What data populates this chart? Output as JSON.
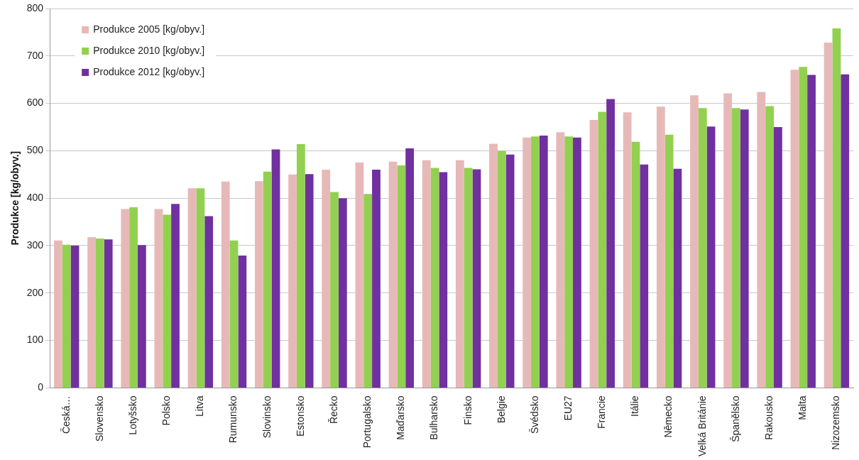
{
  "chart_data": {
    "type": "bar",
    "ylabel": "Produkce [kg/obyv.]",
    "categories": [
      "Česká…",
      "Slovensko",
      "Lotyšsko",
      "Polsko",
      "Litva",
      "Rumunsko",
      "Slovinsko",
      "Estonsko",
      "Řecko",
      "Portugalsko",
      "Maďarsko",
      "Bulharsko",
      "Finsko",
      "Belgie",
      "Švédsko",
      "EU27",
      "Francie",
      "Itálie",
      "Německo",
      "Velká Británie",
      "Španělsko",
      "Rakousko",
      "Malta",
      "Nizozemsko"
    ],
    "series": [
      {
        "name": "Produkce 2005 [kg/obyv.]",
        "color": "#e6b9b8",
        "values": [
          311,
          318,
          377,
          377,
          421,
          435,
          436,
          450,
          460,
          475,
          477,
          480,
          480,
          515,
          528,
          539,
          565,
          581,
          593,
          617,
          621,
          624,
          671,
          728
        ]
      },
      {
        "name": "Produkce 2010 [kg/obyv.]",
        "color": "#92d050",
        "values": [
          302,
          315,
          381,
          365,
          421,
          311,
          456,
          514,
          413,
          409,
          469,
          464,
          464,
          500,
          530,
          530,
          582,
          519,
          534,
          590,
          590,
          594,
          677,
          758
        ]
      },
      {
        "name": "Produkce 2012 [kg/obyv.]",
        "color": "#7030a0",
        "values": [
          300,
          313,
          301,
          388,
          362,
          279,
          503,
          451,
          400,
          460,
          505,
          455,
          461,
          492,
          532,
          528,
          609,
          471,
          462,
          551,
          587,
          550,
          660,
          661
        ]
      }
    ],
    "ylim": [
      0,
      800
    ],
    "yticks": [
      0,
      100,
      200,
      300,
      400,
      500,
      600,
      700,
      800
    ],
    "grid": "y",
    "legend": "top left"
  }
}
